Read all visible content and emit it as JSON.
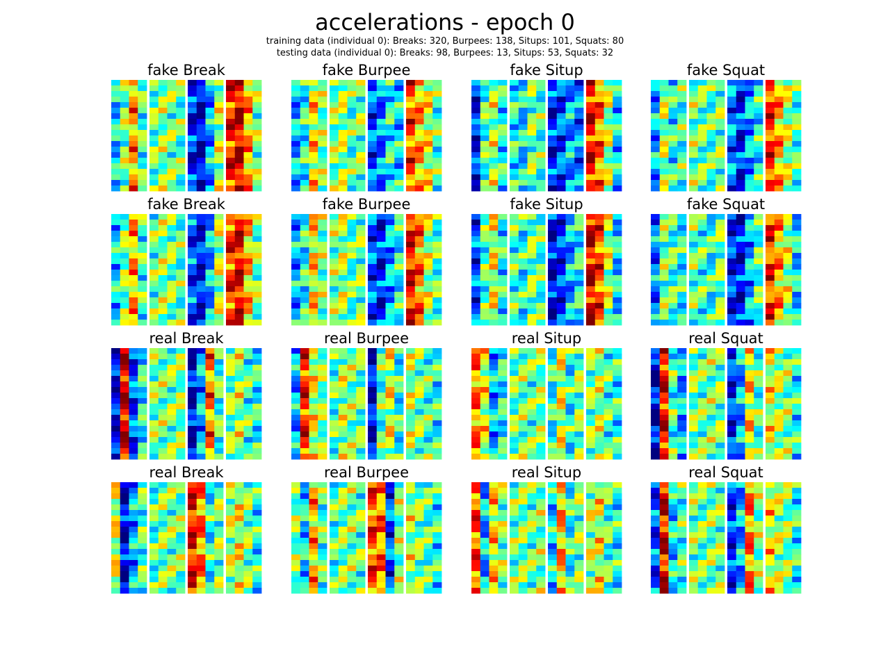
{
  "figure": {
    "title": "accelerations - epoch 0",
    "subtitle_lines": [
      "training data (individual 0): Breaks: 320, Burpees: 138, Situps: 101, Squats: 80",
      "testing data (individual 0): Breaks: 98, Burpees: 13, Situps: 53, Squats: 32"
    ]
  },
  "chart_data": {
    "type": "heatmap",
    "colormap": "jet",
    "grid": false,
    "axes_visible": false,
    "value_range": [
      0,
      1
    ],
    "rows_per_heatmap": 20,
    "columns_per_group": 4,
    "groups_per_heatmap": 4,
    "panels": [
      {
        "title": "fake Break",
        "groups": [
          [
            0.35,
            0.5,
            0.72,
            0.45
          ],
          [
            0.48,
            0.52,
            0.5,
            0.46
          ],
          [
            0.15,
            0.08,
            0.3,
            0.55
          ],
          [
            0.85,
            0.92,
            0.7,
            0.5
          ]
        ]
      },
      {
        "title": "fake Burpee",
        "groups": [
          [
            0.3,
            0.4,
            0.65,
            0.5
          ],
          [
            0.5,
            0.55,
            0.45,
            0.5
          ],
          [
            0.2,
            0.25,
            0.4,
            0.35
          ],
          [
            0.8,
            0.7,
            0.6,
            0.45
          ]
        ]
      },
      {
        "title": "fake Situp",
        "groups": [
          [
            0.15,
            0.45,
            0.55,
            0.4
          ],
          [
            0.4,
            0.35,
            0.5,
            0.45
          ],
          [
            0.15,
            0.2,
            0.3,
            0.25
          ],
          [
            0.88,
            0.75,
            0.55,
            0.35
          ]
        ]
      },
      {
        "title": "fake Squat",
        "groups": [
          [
            0.3,
            0.55,
            0.4,
            0.45
          ],
          [
            0.5,
            0.48,
            0.45,
            0.5
          ],
          [
            0.25,
            0.15,
            0.3,
            0.4
          ],
          [
            0.85,
            0.7,
            0.55,
            0.45
          ]
        ]
      },
      {
        "title": "fake Break",
        "groups": [
          [
            0.35,
            0.5,
            0.7,
            0.45
          ],
          [
            0.48,
            0.52,
            0.5,
            0.46
          ],
          [
            0.2,
            0.12,
            0.3,
            0.55
          ],
          [
            0.82,
            0.9,
            0.68,
            0.5
          ]
        ]
      },
      {
        "title": "fake Burpee",
        "groups": [
          [
            0.3,
            0.4,
            0.65,
            0.5
          ],
          [
            0.5,
            0.55,
            0.45,
            0.5
          ],
          [
            0.2,
            0.15,
            0.3,
            0.4
          ],
          [
            0.88,
            0.75,
            0.55,
            0.45
          ]
        ]
      },
      {
        "title": "fake Situp",
        "groups": [
          [
            0.2,
            0.45,
            0.6,
            0.4
          ],
          [
            0.45,
            0.4,
            0.5,
            0.45
          ],
          [
            0.1,
            0.15,
            0.3,
            0.4
          ],
          [
            0.9,
            0.8,
            0.55,
            0.35
          ]
        ]
      },
      {
        "title": "fake Squat",
        "groups": [
          [
            0.25,
            0.5,
            0.45,
            0.4
          ],
          [
            0.48,
            0.45,
            0.4,
            0.5
          ],
          [
            0.15,
            0.12,
            0.3,
            0.45
          ],
          [
            0.82,
            0.7,
            0.55,
            0.35
          ]
        ]
      },
      {
        "title": "real Break",
        "groups": [
          [
            0.1,
            0.92,
            0.2,
            0.4
          ],
          [
            0.5,
            0.5,
            0.5,
            0.5
          ],
          [
            0.1,
            0.3,
            0.75,
            0.45
          ],
          [
            0.5,
            0.55,
            0.45,
            0.4
          ]
        ]
      },
      {
        "title": "real Burpee",
        "groups": [
          [
            0.3,
            0.85,
            0.6,
            0.5
          ],
          [
            0.45,
            0.55,
            0.5,
            0.48
          ],
          [
            0.1,
            0.45,
            0.6,
            0.4
          ],
          [
            0.55,
            0.5,
            0.45,
            0.4
          ]
        ]
      },
      {
        "title": "real Situp",
        "groups": [
          [
            0.75,
            0.6,
            0.3,
            0.4
          ],
          [
            0.48,
            0.5,
            0.48,
            0.5
          ],
          [
            0.4,
            0.6,
            0.4,
            0.5
          ],
          [
            0.5,
            0.55,
            0.45,
            0.4
          ]
        ]
      },
      {
        "title": "real Squat",
        "groups": [
          [
            0.1,
            0.88,
            0.45,
            0.3
          ],
          [
            0.5,
            0.48,
            0.5,
            0.5
          ],
          [
            0.15,
            0.3,
            0.65,
            0.45
          ],
          [
            0.6,
            0.55,
            0.5,
            0.4
          ]
        ]
      },
      {
        "title": "real Break",
        "groups": [
          [
            0.6,
            0.1,
            0.3,
            0.45
          ],
          [
            0.45,
            0.5,
            0.5,
            0.48
          ],
          [
            0.88,
            0.75,
            0.4,
            0.5
          ],
          [
            0.55,
            0.6,
            0.5,
            0.4
          ]
        ]
      },
      {
        "title": "real Burpee",
        "groups": [
          [
            0.5,
            0.35,
            0.7,
            0.45
          ],
          [
            0.45,
            0.5,
            0.5,
            0.48
          ],
          [
            0.8,
            0.75,
            0.2,
            0.5
          ],
          [
            0.55,
            0.5,
            0.45,
            0.4
          ]
        ]
      },
      {
        "title": "real Situp",
        "groups": [
          [
            0.8,
            0.3,
            0.65,
            0.5
          ],
          [
            0.48,
            0.5,
            0.48,
            0.5
          ],
          [
            0.35,
            0.7,
            0.4,
            0.5
          ],
          [
            0.55,
            0.6,
            0.45,
            0.4
          ]
        ]
      },
      {
        "title": "real Squat",
        "groups": [
          [
            0.2,
            0.88,
            0.35,
            0.45
          ],
          [
            0.5,
            0.48,
            0.5,
            0.5
          ],
          [
            0.15,
            0.3,
            0.75,
            0.5
          ],
          [
            0.62,
            0.55,
            0.5,
            0.4
          ]
        ]
      }
    ]
  }
}
